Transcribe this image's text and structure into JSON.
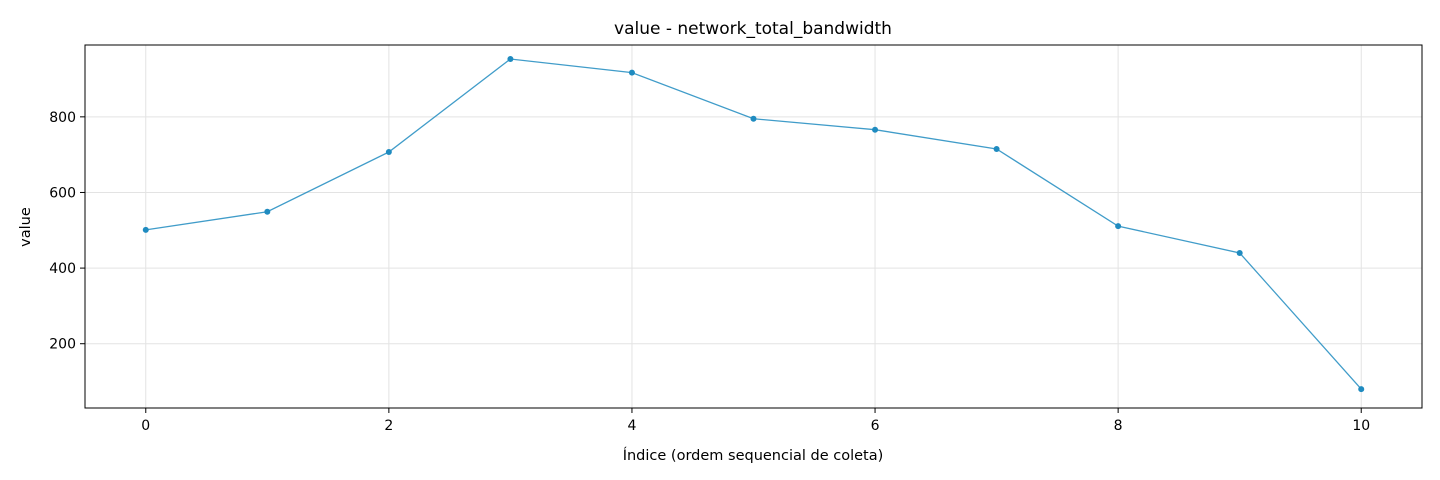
{
  "chart_data": {
    "type": "line",
    "title": "value - network_total_bandwidth",
    "xlabel": "Índice (ordem sequencial de coleta)",
    "ylabel": "value",
    "x": [
      0,
      1,
      2,
      3,
      4,
      5,
      6,
      7,
      8,
      9,
      10
    ],
    "series": [
      {
        "values": [
          501,
          549,
          707,
          953,
          917,
          795,
          766,
          715,
          511,
          440,
          80
        ],
        "color": "#1f8bc0"
      }
    ],
    "xlim": [
      -0.5,
      10.5
    ],
    "ylim": [
      30,
      990
    ],
    "xticks": [
      0,
      2,
      4,
      6,
      8,
      10
    ],
    "yticks": [
      200,
      400,
      600,
      800
    ],
    "grid": true,
    "legend": "none"
  }
}
